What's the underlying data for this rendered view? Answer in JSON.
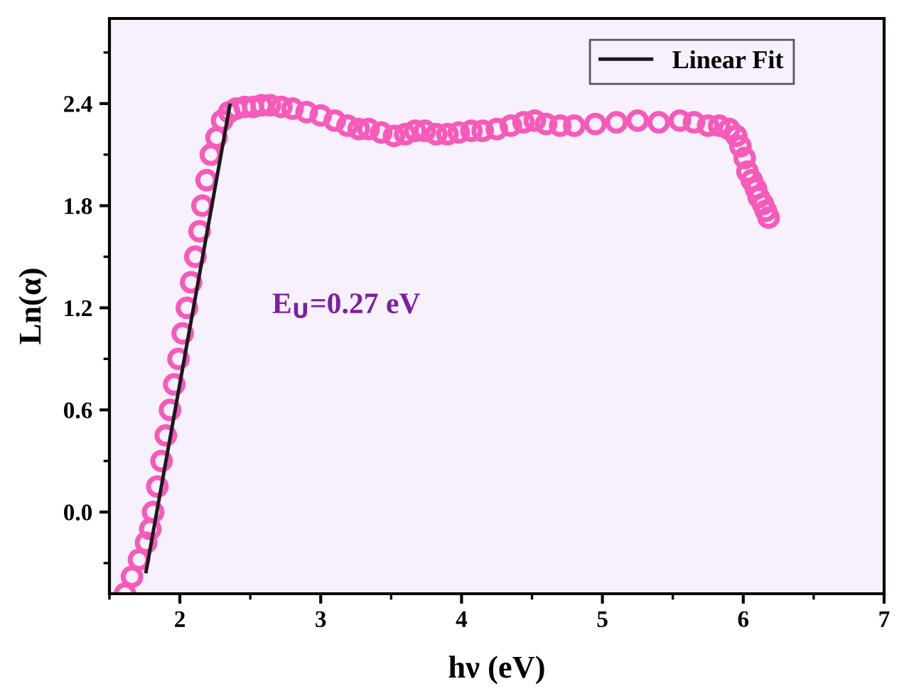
{
  "chart_data": {
    "type": "scatter",
    "xlabel": "hν (eV)",
    "ylabel": "Ln(α)",
    "annotations": [
      "E$_{U}$=0.27 eV"
    ],
    "xlim": [
      1.5,
      7
    ],
    "ylim": [
      -0.48,
      2.9
    ],
    "xticks": [
      {
        "value": 1.5,
        "label": null
      },
      2,
      {
        "value": 2.5,
        "label": null
      },
      3,
      {
        "value": 3.5,
        "label": null
      },
      4,
      {
        "value": 4.5,
        "label": null
      },
      5,
      {
        "value": 5.5,
        "label": null
      },
      6,
      {
        "value": 6.5,
        "label": null
      },
      7
    ],
    "yticks": [
      {
        "value": -0.3,
        "label": null
      },
      {
        "value": 0.0,
        "label": "0.0"
      },
      {
        "value": 0.3,
        "label": null
      },
      0.6,
      {
        "value": 0.9,
        "label": null
      },
      1.2,
      {
        "value": 1.5,
        "label": null
      },
      1.8,
      {
        "value": 2.1,
        "label": null
      },
      2.4,
      {
        "value": 2.7,
        "label": null
      }
    ],
    "grid": false,
    "legend": "top right",
    "marker": "circle",
    "series": [
      {
        "color": "#f75ab8",
        "x": [
          1.61,
          1.66,
          1.71,
          1.76,
          1.79,
          1.81,
          1.84,
          1.87,
          1.9,
          1.93,
          1.96,
          1.99,
          2.02,
          2.05,
          2.08,
          2.11,
          2.14,
          2.16,
          2.19,
          2.22,
          2.26,
          2.3,
          2.35,
          2.4,
          2.46,
          2.52,
          2.58,
          2.64,
          2.72,
          2.8,
          2.9,
          3.0,
          3.1,
          3.19,
          3.27,
          3.34,
          3.43,
          3.52,
          3.6,
          3.67,
          3.74,
          3.82,
          3.9,
          3.98,
          4.07,
          4.15,
          4.25,
          4.35,
          4.44,
          4.52,
          4.6,
          4.7,
          4.8,
          4.95,
          5.1,
          5.25,
          5.4,
          5.55,
          5.65,
          5.75,
          5.83,
          5.9,
          5.95,
          5.98,
          6.01,
          6.03,
          6.06,
          6.09,
          6.11,
          6.14,
          6.16,
          6.18
        ],
        "values": [
          -0.48,
          -0.38,
          -0.28,
          -0.18,
          -0.1,
          0.0,
          0.15,
          0.3,
          0.45,
          0.6,
          0.75,
          0.9,
          1.05,
          1.2,
          1.35,
          1.5,
          1.65,
          1.8,
          1.95,
          2.1,
          2.2,
          2.3,
          2.35,
          2.37,
          2.38,
          2.38,
          2.39,
          2.39,
          2.38,
          2.37,
          2.35,
          2.33,
          2.3,
          2.27,
          2.25,
          2.25,
          2.23,
          2.21,
          2.22,
          2.24,
          2.24,
          2.22,
          2.22,
          2.23,
          2.24,
          2.24,
          2.25,
          2.27,
          2.29,
          2.3,
          2.28,
          2.27,
          2.27,
          2.28,
          2.29,
          2.3,
          2.29,
          2.3,
          2.29,
          2.27,
          2.27,
          2.25,
          2.21,
          2.15,
          2.08,
          2.0,
          1.95,
          1.9,
          1.85,
          1.81,
          1.77,
          1.73
        ]
      },
      {
        "type": "line",
        "name": "Linear Fit",
        "color": "#1a1a1a",
        "marker": "none",
        "line_style": "solid",
        "x": [
          1.76,
          2.355
        ],
        "values": [
          -0.35,
          2.39
        ]
      }
    ]
  }
}
